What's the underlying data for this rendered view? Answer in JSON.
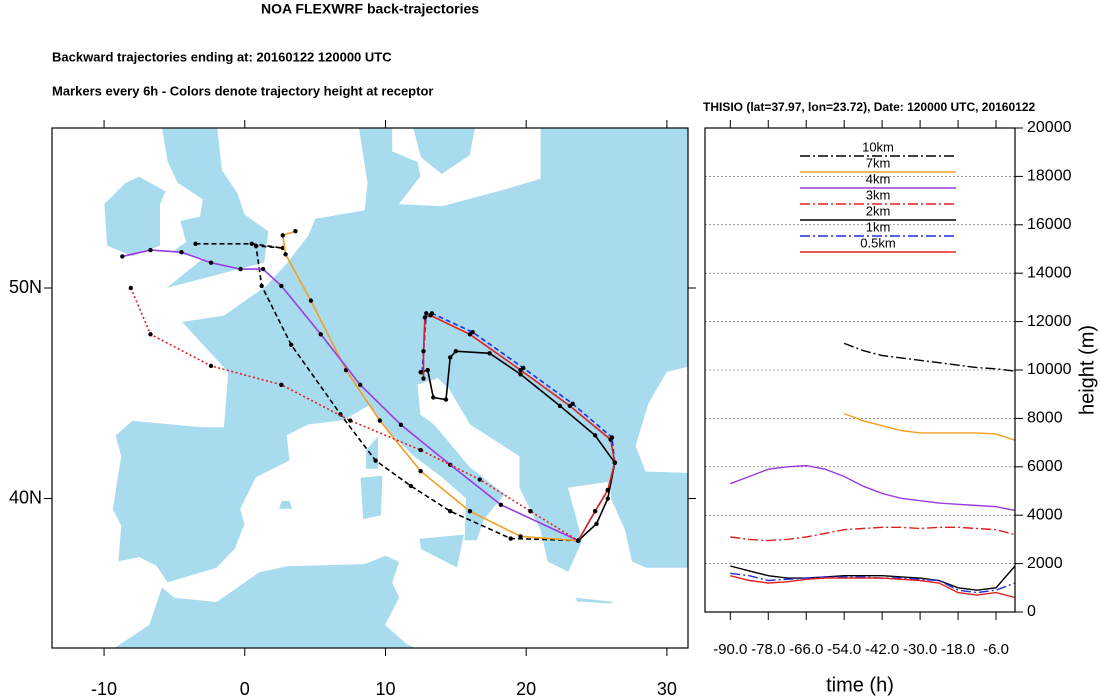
{
  "title": "NOA FLEXWRF back-trajectories",
  "subtitle": "Backward trajectories ending at: 20160122  120000 UTC",
  "note": "Markers every 6h - Colors denote trajectory height at receptor",
  "chart_data": [
    {
      "type": "map",
      "xlim": [
        -13.7,
        31.5
      ],
      "ylim": [
        32.9,
        57.6
      ],
      "xticks": [
        -10,
        0,
        10,
        20,
        30
      ],
      "yticks": [
        {
          "value": 40,
          "label": "40N"
        },
        {
          "value": 50,
          "label": "50N"
        }
      ],
      "land_color": "#a9dbef",
      "series": [
        {
          "color": "#000000",
          "linestyle": "dash",
          "x": [
            -3.5,
            0.5,
            2.7,
            0.8,
            1.2,
            3.3,
            6.8,
            9.3,
            11.8,
            14.6,
            18.9,
            23.7
          ],
          "values": [
            52.1,
            52.1,
            51.9,
            52.0,
            50.1,
            47.3,
            44.0,
            41.8,
            40.6,
            39.4,
            38.1,
            38.0
          ]
        },
        {
          "color": "#f0a020",
          "linestyle": "solid",
          "x": [
            3.6,
            2.7,
            2.9,
            4.7,
            7.2,
            9.6,
            12.5,
            16.0,
            19.6,
            23.7
          ],
          "values": [
            52.7,
            52.5,
            51.6,
            49.4,
            46.1,
            43.7,
            41.3,
            39.4,
            38.2,
            38.0
          ]
        },
        {
          "color": "#9a3ce0",
          "linestyle": "solid",
          "x": [
            -8.7,
            -6.7,
            -4.5,
            -2.4,
            -0.3,
            1.3,
            2.6,
            5.4,
            8.2,
            11.1,
            14.6,
            18.2,
            23.7
          ],
          "values": [
            51.5,
            51.8,
            51.7,
            51.2,
            50.9,
            50.9,
            50.1,
            47.8,
            45.4,
            43.5,
            41.6,
            39.7,
            38.0
          ]
        },
        {
          "color": "#e02020",
          "linestyle": "dot",
          "x": [
            -8.1,
            -6.7,
            -2.4,
            2.6,
            7.5,
            12.5,
            16.7,
            20.3,
            23.7
          ],
          "values": [
            50.0,
            47.8,
            46.3,
            45.4,
            43.7,
            42.3,
            40.9,
            39.4,
            38.0
          ]
        },
        {
          "color": "#000000",
          "linestyle": "solid",
          "x": [
            12.5,
            13.0,
            13.4,
            14.3,
            14.6,
            15.0,
            17.4,
            19.6,
            22.4,
            24.9,
            26.3,
            25.8,
            25.0,
            23.7
          ],
          "values": [
            46.0,
            46.1,
            44.8,
            44.7,
            46.7,
            47.0,
            46.9,
            45.9,
            44.4,
            43.0,
            41.7,
            40.0,
            38.8,
            38.0
          ]
        },
        {
          "color": "#2030e0",
          "linestyle": "dash",
          "x": [
            12.6,
            12.9,
            13.3,
            16.2,
            19.8,
            23.3,
            26.1,
            26.3,
            25.8,
            24.9,
            23.7
          ],
          "values": [
            46.0,
            48.8,
            48.8,
            47.9,
            46.2,
            44.5,
            42.9,
            41.7,
            40.4,
            39.4,
            38.0
          ]
        },
        {
          "color": "#e02020",
          "linestyle": "solid",
          "x": [
            12.7,
            12.7,
            12.8,
            13.2,
            16.0,
            19.6,
            23.1,
            26.0,
            26.3,
            25.8,
            24.9,
            23.7
          ],
          "values": [
            45.7,
            47.0,
            48.6,
            48.7,
            47.8,
            46.1,
            44.4,
            42.8,
            41.7,
            40.4,
            39.4,
            38.0
          ]
        }
      ]
    },
    {
      "type": "line",
      "title": "THISIO (lat=37.97,  lon=23.72), Date: 120000 UTC, 20160122",
      "x_label": "time (h)",
      "y_label": "height (m)",
      "xlim": [
        -98,
        0
      ],
      "ylim": [
        0,
        20000
      ],
      "xticks": [
        {
          "value": -90,
          "label": "-90.0"
        },
        {
          "value": -78,
          "label": "-78.0"
        },
        {
          "value": -66,
          "label": "-66.0"
        },
        {
          "value": -54,
          "label": "-54.0"
        },
        {
          "value": -42,
          "label": "-42.0"
        },
        {
          "value": -30,
          "label": "-30.0"
        },
        {
          "value": -18,
          "label": "-18.0"
        },
        {
          "value": -6,
          "label": "-6.0"
        }
      ],
      "yticks": [
        0,
        2000,
        4000,
        6000,
        8000,
        10000,
        12000,
        14000,
        16000,
        18000,
        20000
      ],
      "grid": true,
      "x": [
        -96,
        -90,
        -84,
        -78,
        -72,
        -66,
        -60,
        -54,
        -48,
        -42,
        -36,
        -30,
        -24,
        -18,
        -12,
        -6,
        0
      ],
      "series": [
        {
          "name": "10km",
          "color": "#000000",
          "linestyle": "dashdot",
          "values": [
            null,
            null,
            null,
            null,
            null,
            null,
            null,
            11100,
            10800,
            10600,
            10500,
            10400,
            10300,
            10200,
            10100,
            10050,
            9950
          ]
        },
        {
          "name": "7km",
          "color": "#f0a020",
          "linestyle": "solid",
          "values": [
            null,
            null,
            null,
            null,
            null,
            null,
            null,
            8200,
            7900,
            7700,
            7500,
            7400,
            7400,
            7400,
            7400,
            7350,
            7100
          ]
        },
        {
          "name": "4km",
          "color": "#9a3ce0",
          "linestyle": "solid",
          "values": [
            null,
            5300,
            5600,
            5900,
            6000,
            6050,
            5900,
            5600,
            5200,
            4900,
            4700,
            4600,
            4500,
            4450,
            4400,
            4350,
            4200
          ]
        },
        {
          "name": "3km",
          "color": "#e02020",
          "linestyle": "dashdot",
          "values": [
            null,
            3100,
            3000,
            2950,
            3000,
            3100,
            3250,
            3400,
            3450,
            3500,
            3500,
            3450,
            3500,
            3500,
            3450,
            3400,
            3200
          ]
        },
        {
          "name": "2km",
          "color": "#000000",
          "linestyle": "solid",
          "values": [
            null,
            1900,
            1700,
            1500,
            1400,
            1400,
            1450,
            1500,
            1500,
            1500,
            1450,
            1400,
            1300,
            1000,
            900,
            1000,
            1900
          ]
        },
        {
          "name": "1km",
          "color": "#2030e0",
          "linestyle": "dashdot",
          "values": [
            null,
            1600,
            1500,
            1300,
            1350,
            1400,
            1450,
            1450,
            1450,
            1400,
            1400,
            1350,
            1300,
            900,
            800,
            900,
            1200
          ]
        },
        {
          "name": "0.5km",
          "color": "#e02020",
          "linestyle": "solid",
          "values": [
            null,
            1500,
            1300,
            1200,
            1250,
            1350,
            1400,
            1400,
            1400,
            1400,
            1350,
            1300,
            1200,
            800,
            700,
            800,
            600
          ]
        }
      ]
    }
  ]
}
